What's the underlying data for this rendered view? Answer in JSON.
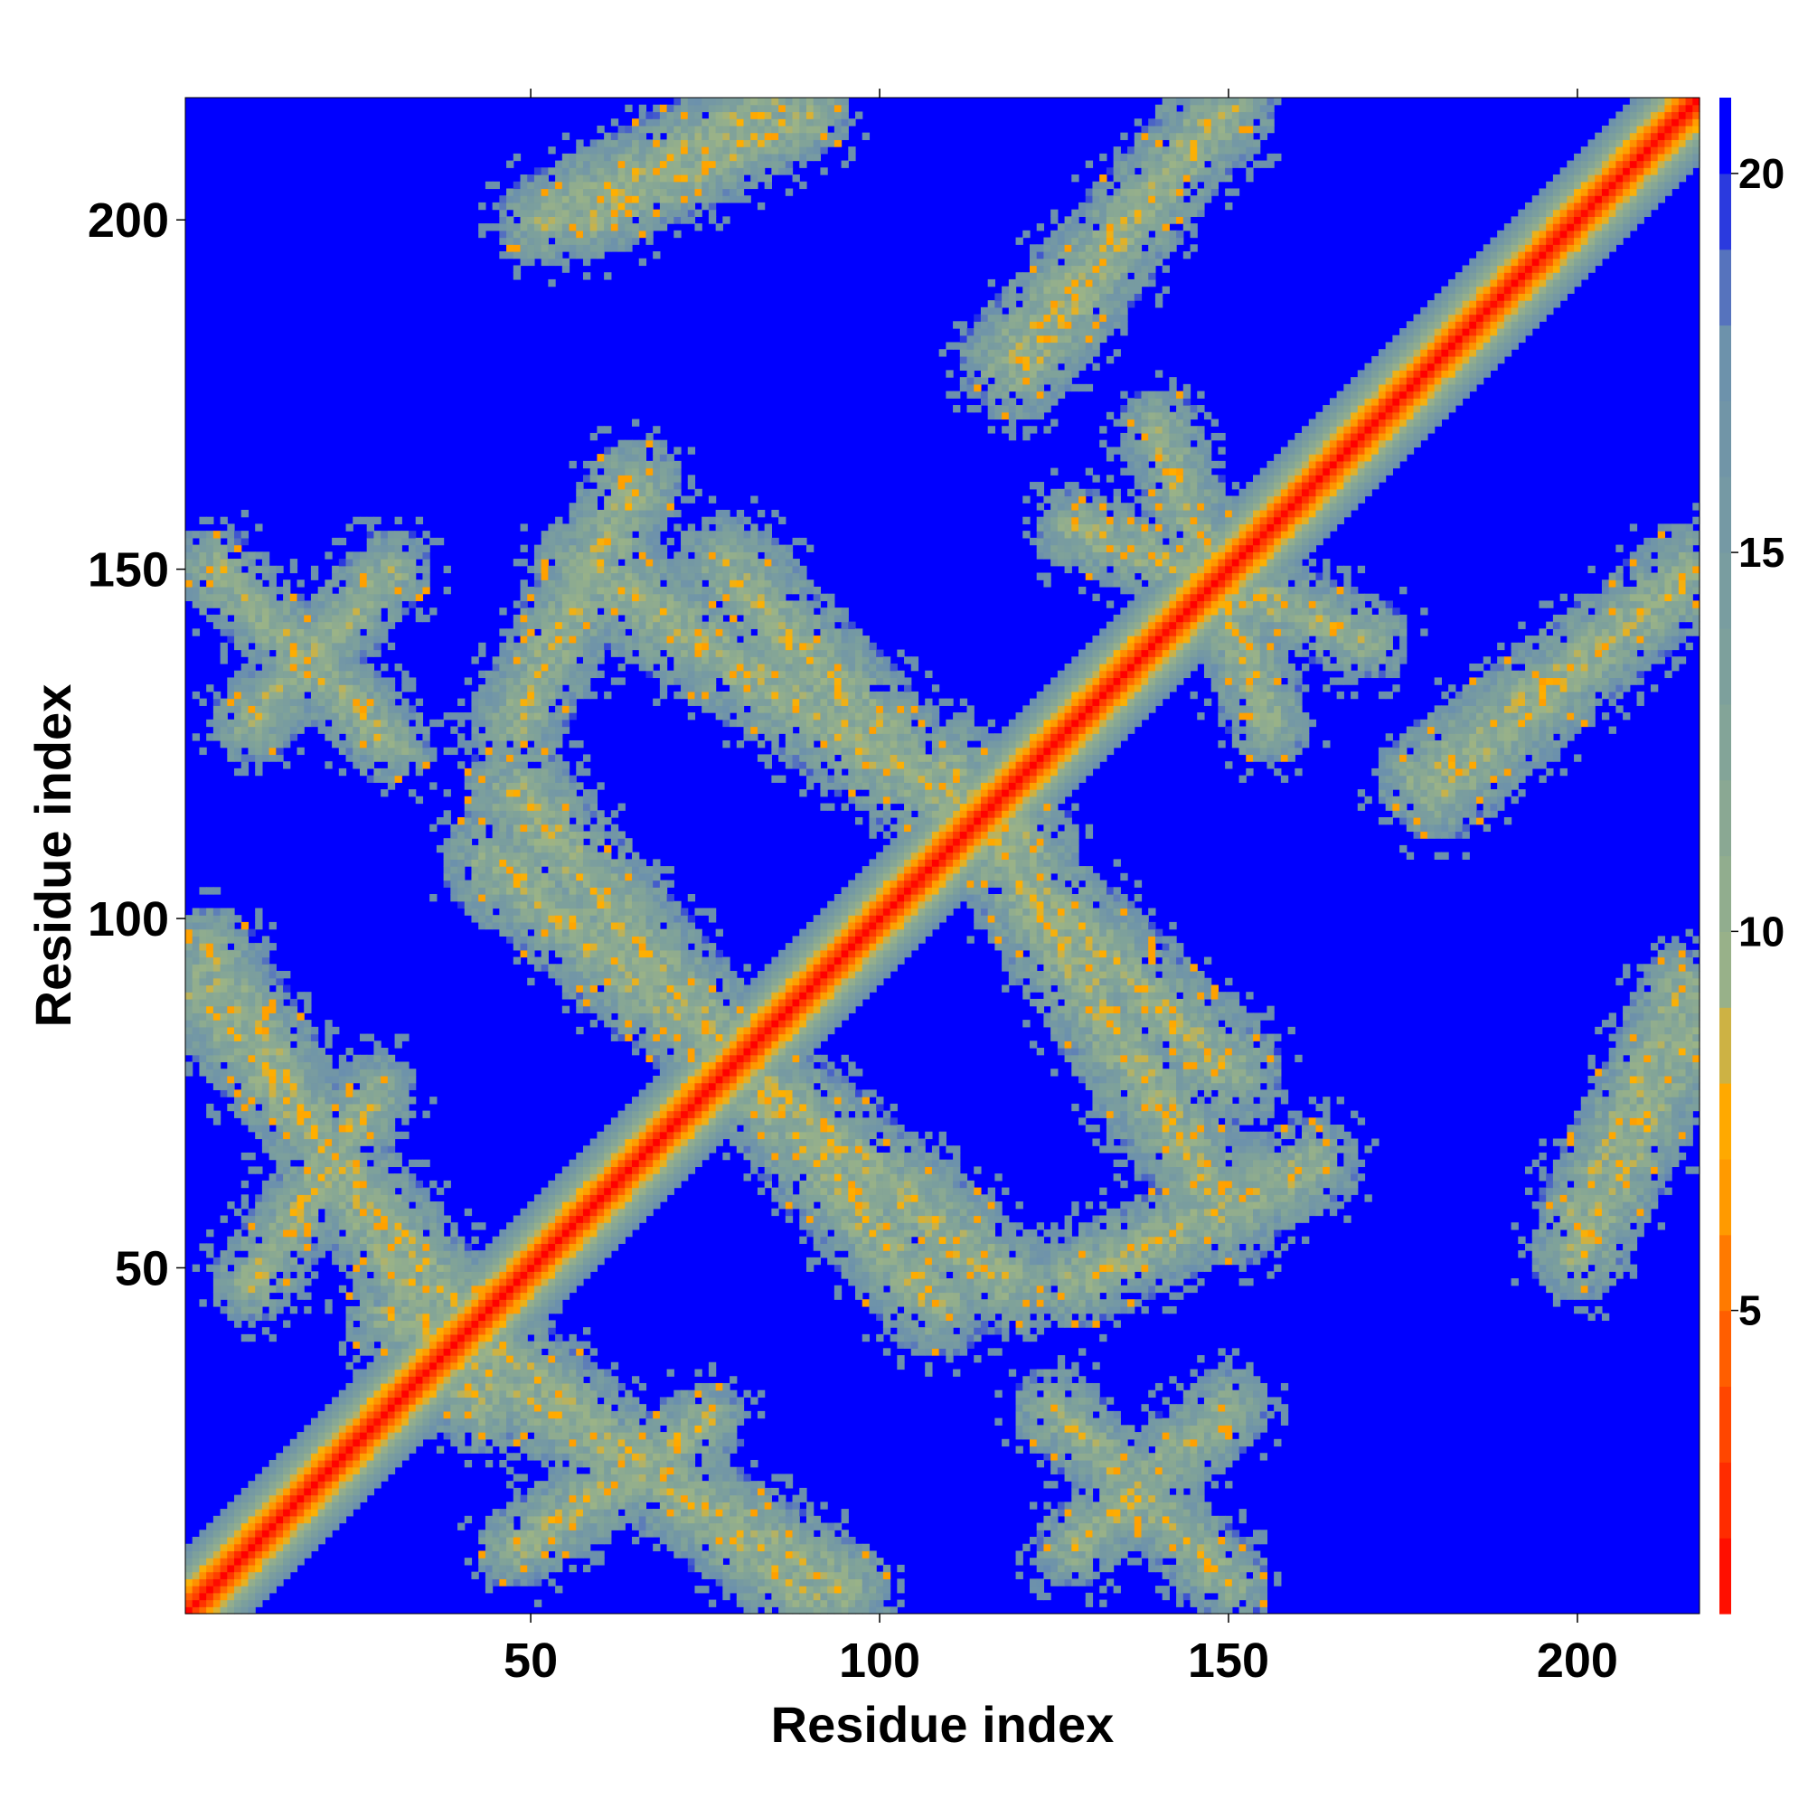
{
  "chart_data": {
    "type": "heatmap",
    "title": "",
    "xlabel": "Residue index",
    "ylabel": "Residue index",
    "n_residues": 217,
    "xlim": [
      1,
      217
    ],
    "ylim": [
      1,
      217
    ],
    "xticks": [
      50,
      100,
      150,
      200
    ],
    "yticks": [
      50,
      100,
      150,
      200
    ],
    "colorbar": {
      "ticks": [
        5,
        10,
        15,
        20
      ],
      "range": [
        1,
        21
      ],
      "palette": [
        "#ff0000",
        "#ff3a00",
        "#ff6a00",
        "#ff9a00",
        "#ffb000",
        "#9bb387",
        "#7fa29a",
        "#6b90ad",
        "#0000ff"
      ],
      "palette_stops": [
        1,
        3,
        5,
        6.5,
        8,
        9,
        13,
        18,
        20.5
      ]
    },
    "contact_bands": [
      {
        "x0": 2,
        "y0": 90,
        "x1": 40,
        "y1": 44,
        "width": 7
      },
      {
        "x0": 30,
        "y0": 43,
        "x1": 95,
        "y1": 4,
        "width": 7
      },
      {
        "x0": 45,
        "y0": 108,
        "x1": 118,
        "y1": 48,
        "width": 8
      },
      {
        "x0": 58,
        "y0": 150,
        "x1": 121,
        "y1": 110,
        "width": 8
      },
      {
        "x0": 118,
        "y0": 108,
        "x1": 150,
        "y1": 78,
        "width": 8
      },
      {
        "x0": 128,
        "y0": 48,
        "x1": 162,
        "y1": 65,
        "width": 7
      },
      {
        "x0": 52,
        "y0": 200,
        "x1": 84,
        "y1": 216,
        "width": 7
      },
      {
        "x0": 118,
        "y0": 180,
        "x1": 150,
        "y1": 216,
        "width": 7
      },
      {
        "x0": 178,
        "y0": 120,
        "x1": 215,
        "y1": 148,
        "width": 7
      },
      {
        "x0": 200,
        "y0": 58,
        "x1": 215,
        "y1": 90,
        "width": 6
      },
      {
        "x0": 128,
        "y0": 156,
        "x1": 170,
        "y1": 140,
        "width": 6
      },
      {
        "x0": 5,
        "y0": 150,
        "x1": 30,
        "y1": 125,
        "width": 6
      },
      {
        "x0": 48,
        "y0": 10,
        "x1": 75,
        "y1": 28,
        "width": 6
      },
      {
        "x0": 128,
        "y0": 10,
        "x1": 150,
        "y1": 30,
        "width": 6
      }
    ]
  }
}
